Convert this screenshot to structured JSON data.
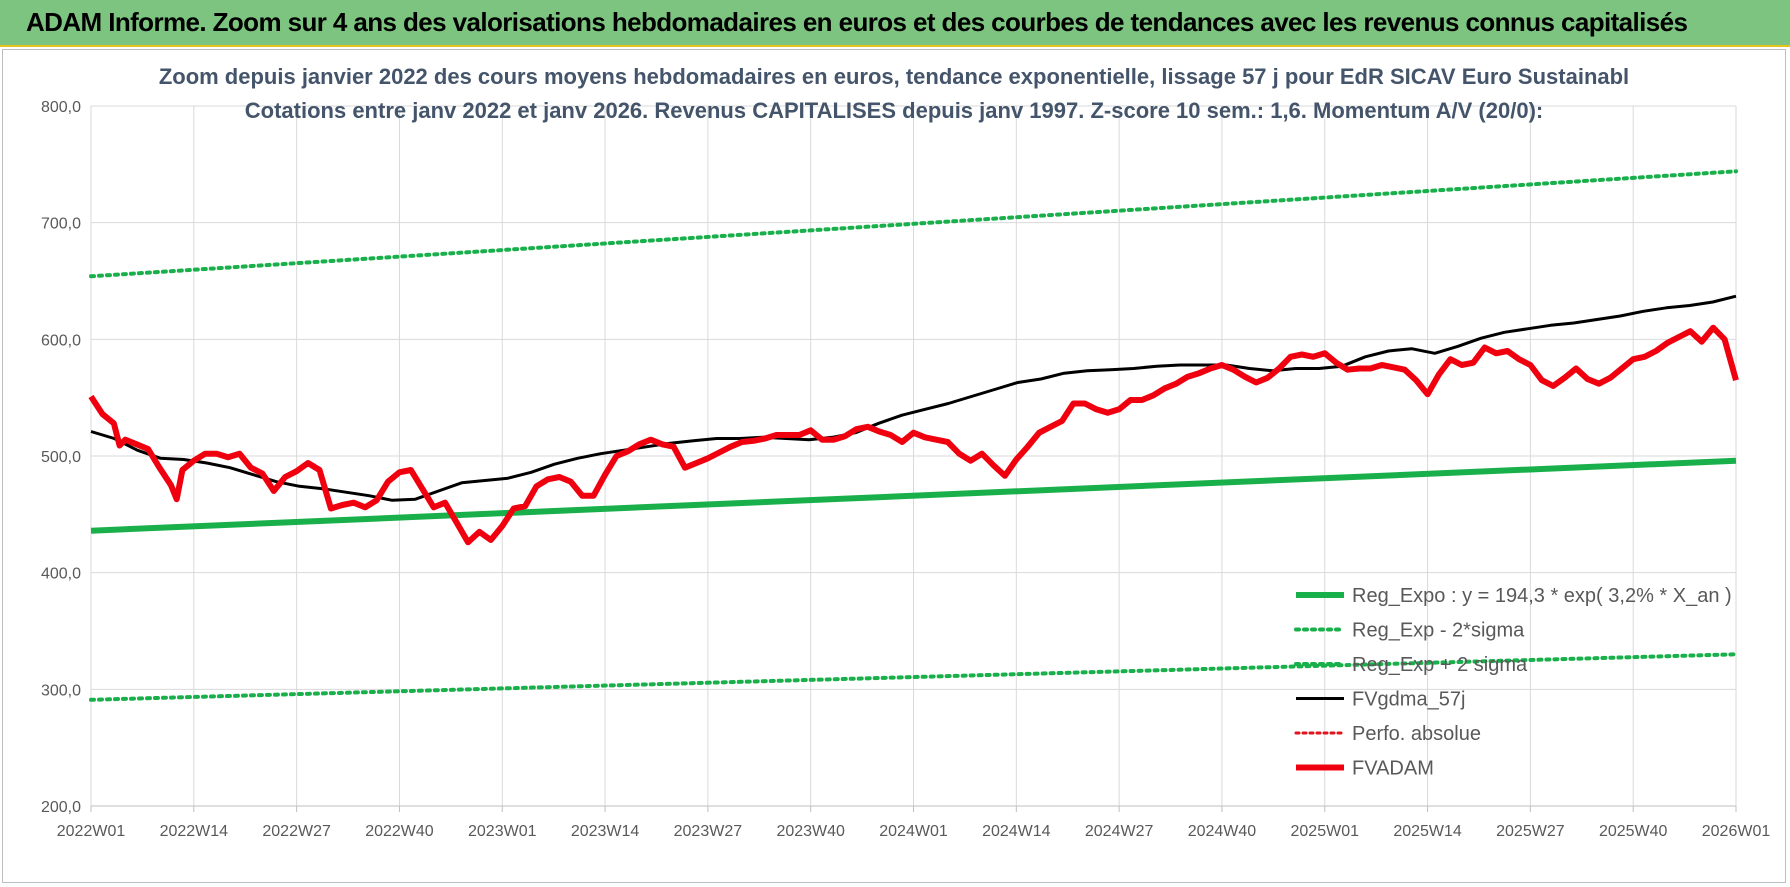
{
  "banner": {
    "title": "ADAM Informe. Zoom sur 4 ans des valorisations hebdomadaires en euros et des courbes de tendances avec les revenus connus capitalisés"
  },
  "chart_data": {
    "type": "line",
    "title": "Zoom depuis janvier 2022 des cours moyens hebdomadaires en euros, tendance exponentielle, lissage 57 j pour EdR SICAV Euro Sustainabl",
    "subtitle": "Cotations entre janv 2022 et janv 2026. Revenus CAPITALISES depuis janv 1997. Z-score 10 sem.: 1,6. Momentum A/V (20/0):",
    "x_ticks": [
      "2022W01",
      "2022W14",
      "2022W27",
      "2022W40",
      "2023W01",
      "2023W14",
      "2023W27",
      "2023W40",
      "2024W01",
      "2024W14",
      "2024W27",
      "2024W40",
      "2025W01",
      "2025W14",
      "2025W27",
      "2025W40",
      "2026W01"
    ],
    "y_ticks": [
      "200,0",
      "300,0",
      "400,0",
      "500,0",
      "600,0",
      "700,0",
      "800,0"
    ],
    "ylim": [
      200,
      800
    ],
    "grid": true,
    "legend_position": "bottom-right",
    "x_range_weeks": [
      0,
      209
    ],
    "series": [
      {
        "name": "Reg_Expo : y = 194,3 * exp( 3,2% *  X_an )",
        "color": "#19b04b",
        "style": "solid",
        "width": 6,
        "points": [
          [
            0,
            436
          ],
          [
            209,
            496
          ]
        ]
      },
      {
        "name": "Reg_Exp - 2*sigma",
        "color": "#19b04b",
        "style": "dotted",
        "width": 4,
        "points": [
          [
            0,
            291
          ],
          [
            209,
            330
          ]
        ]
      },
      {
        "name": "Reg_Exp + 2 sigma",
        "color": "#19b04b",
        "style": "dotted",
        "width": 4,
        "points": [
          [
            0,
            654
          ],
          [
            209,
            744
          ]
        ]
      },
      {
        "name": "FVgdma_57j",
        "color": "#000000",
        "style": "solid",
        "width": 3,
        "points": [
          [
            0,
            521
          ],
          [
            4,
            515
          ],
          [
            8,
            505
          ],
          [
            12,
            498
          ],
          [
            16,
            497
          ],
          [
            20,
            494
          ],
          [
            24,
            490
          ],
          [
            28,
            484
          ],
          [
            32,
            478
          ],
          [
            36,
            474
          ],
          [
            40,
            472
          ],
          [
            44,
            469
          ],
          [
            48,
            466
          ],
          [
            52,
            462
          ],
          [
            56,
            463
          ],
          [
            60,
            470
          ],
          [
            64,
            477
          ],
          [
            68,
            479
          ],
          [
            72,
            481
          ],
          [
            76,
            486
          ],
          [
            80,
            493
          ],
          [
            84,
            498
          ],
          [
            88,
            502
          ],
          [
            92,
            505
          ],
          [
            96,
            508
          ],
          [
            100,
            511
          ],
          [
            104,
            513
          ],
          [
            108,
            515
          ],
          [
            112,
            515
          ],
          [
            116,
            516
          ],
          [
            120,
            515
          ],
          [
            124,
            514
          ],
          [
            128,
            516
          ],
          [
            132,
            520
          ],
          [
            136,
            528
          ],
          [
            140,
            535
          ],
          [
            144,
            540
          ],
          [
            148,
            545
          ],
          [
            152,
            551
          ],
          [
            156,
            557
          ],
          [
            160,
            563
          ],
          [
            164,
            566
          ],
          [
            168,
            571
          ],
          [
            172,
            573
          ],
          [
            176,
            574
          ],
          [
            180,
            575
          ],
          [
            184,
            577
          ],
          [
            188,
            578
          ],
          [
            192,
            578
          ],
          [
            196,
            578
          ],
          [
            200,
            575
          ],
          [
            204,
            573
          ],
          [
            208,
            575
          ],
          [
            212,
            575
          ],
          [
            216,
            577
          ],
          [
            220,
            585
          ],
          [
            224,
            590
          ],
          [
            228,
            592
          ],
          [
            232,
            588
          ],
          [
            236,
            594
          ],
          [
            240,
            601
          ],
          [
            244,
            606
          ],
          [
            248,
            609
          ],
          [
            252,
            612
          ],
          [
            256,
            614
          ],
          [
            260,
            617
          ],
          [
            264,
            620
          ],
          [
            268,
            624
          ],
          [
            272,
            627
          ],
          [
            276,
            629
          ],
          [
            280,
            632
          ],
          [
            284,
            637
          ]
        ]
      },
      {
        "name": "Perfo. absolue",
        "color": "#e0141b",
        "style": "dotted",
        "width": 3,
        "points": []
      },
      {
        "name": "FVADAM",
        "color": "#f0000f",
        "style": "solid",
        "width": 6,
        "points": [
          [
            0,
            551
          ],
          [
            2,
            536
          ],
          [
            4,
            528
          ],
          [
            5,
            509
          ],
          [
            6,
            514
          ],
          [
            8,
            510
          ],
          [
            10,
            506
          ],
          [
            12,
            490
          ],
          [
            14,
            475
          ],
          [
            15,
            463
          ],
          [
            16,
            488
          ],
          [
            18,
            496
          ],
          [
            20,
            502
          ],
          [
            22,
            502
          ],
          [
            24,
            499
          ],
          [
            26,
            502
          ],
          [
            28,
            490
          ],
          [
            30,
            485
          ],
          [
            32,
            470
          ],
          [
            34,
            482
          ],
          [
            36,
            487
          ],
          [
            38,
            494
          ],
          [
            40,
            488
          ],
          [
            42,
            455
          ],
          [
            44,
            458
          ],
          [
            46,
            460
          ],
          [
            48,
            456
          ],
          [
            50,
            462
          ],
          [
            52,
            478
          ],
          [
            54,
            486
          ],
          [
            56,
            488
          ],
          [
            58,
            472
          ],
          [
            60,
            456
          ],
          [
            62,
            460
          ],
          [
            64,
            443
          ],
          [
            66,
            426
          ],
          [
            68,
            435
          ],
          [
            70,
            428
          ],
          [
            72,
            440
          ],
          [
            74,
            455
          ],
          [
            76,
            457
          ],
          [
            78,
            474
          ],
          [
            80,
            480
          ],
          [
            82,
            482
          ],
          [
            84,
            478
          ],
          [
            86,
            466
          ],
          [
            88,
            466
          ],
          [
            90,
            484
          ],
          [
            92,
            500
          ],
          [
            94,
            504
          ],
          [
            96,
            510
          ],
          [
            98,
            514
          ],
          [
            100,
            510
          ],
          [
            102,
            508
          ],
          [
            104,
            490
          ],
          [
            106,
            494
          ],
          [
            108,
            498
          ],
          [
            110,
            503
          ],
          [
            112,
            508
          ],
          [
            114,
            512
          ],
          [
            116,
            513
          ],
          [
            118,
            515
          ],
          [
            120,
            518
          ],
          [
            122,
            518
          ],
          [
            124,
            518
          ],
          [
            126,
            522
          ],
          [
            128,
            514
          ],
          [
            130,
            514
          ],
          [
            132,
            517
          ],
          [
            134,
            523
          ],
          [
            136,
            525
          ],
          [
            138,
            521
          ],
          [
            140,
            518
          ],
          [
            142,
            512
          ],
          [
            144,
            520
          ],
          [
            146,
            516
          ],
          [
            148,
            514
          ],
          [
            150,
            512
          ],
          [
            152,
            502
          ],
          [
            154,
            496
          ],
          [
            156,
            502
          ],
          [
            158,
            492
          ],
          [
            160,
            483
          ],
          [
            162,
            497
          ],
          [
            164,
            508
          ],
          [
            166,
            520
          ],
          [
            168,
            525
          ],
          [
            170,
            530
          ],
          [
            172,
            545
          ],
          [
            174,
            545
          ],
          [
            176,
            540
          ],
          [
            178,
            537
          ],
          [
            180,
            540
          ],
          [
            182,
            548
          ],
          [
            184,
            548
          ],
          [
            186,
            552
          ],
          [
            188,
            558
          ],
          [
            190,
            562
          ],
          [
            192,
            568
          ],
          [
            194,
            571
          ],
          [
            196,
            575
          ],
          [
            198,
            578
          ],
          [
            200,
            574
          ],
          [
            202,
            568
          ],
          [
            204,
            563
          ],
          [
            206,
            567
          ],
          [
            208,
            575
          ],
          [
            210,
            585
          ],
          [
            212,
            587
          ],
          [
            214,
            585
          ],
          [
            216,
            588
          ],
          [
            218,
            580
          ],
          [
            220,
            574
          ],
          [
            222,
            575
          ],
          [
            224,
            575
          ],
          [
            226,
            578
          ],
          [
            228,
            576
          ],
          [
            230,
            574
          ],
          [
            232,
            565
          ],
          [
            234,
            553
          ],
          [
            236,
            570
          ],
          [
            238,
            583
          ],
          [
            240,
            578
          ],
          [
            242,
            580
          ],
          [
            244,
            593
          ],
          [
            246,
            588
          ],
          [
            248,
            590
          ],
          [
            250,
            583
          ],
          [
            252,
            578
          ],
          [
            254,
            565
          ],
          [
            256,
            560
          ],
          [
            258,
            567
          ],
          [
            260,
            575
          ],
          [
            262,
            566
          ],
          [
            264,
            562
          ],
          [
            266,
            567
          ],
          [
            268,
            575
          ],
          [
            270,
            583
          ],
          [
            272,
            585
          ],
          [
            274,
            590
          ],
          [
            276,
            597
          ],
          [
            278,
            602
          ],
          [
            280,
            607
          ],
          [
            282,
            598
          ],
          [
            284,
            610
          ],
          [
            286,
            600
          ],
          [
            288,
            565
          ]
        ]
      }
    ]
  }
}
